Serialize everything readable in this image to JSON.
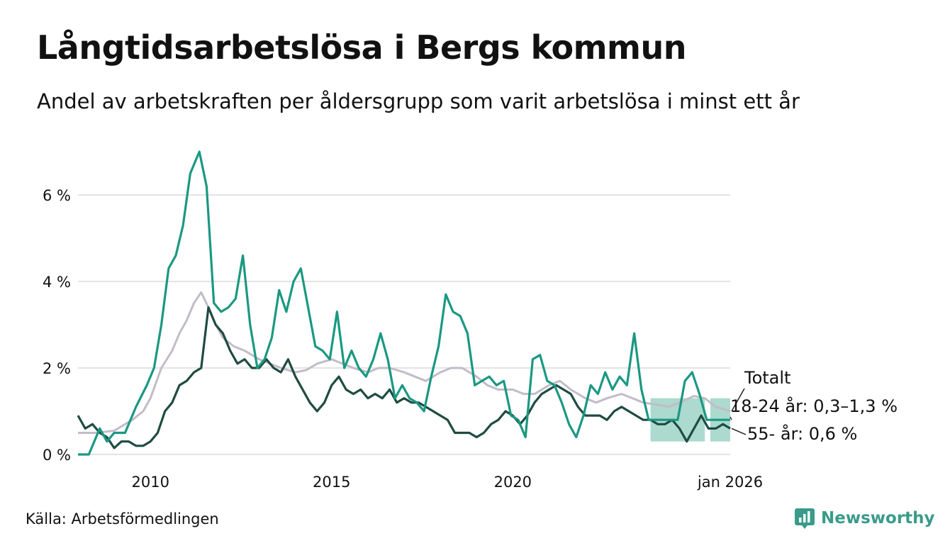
{
  "title": "Långtidsarbetslösa i Bergs kommun",
  "subtitle": "Andel av arbetskraften per åldersgrupp som varit arbetslösa i minst ett år",
  "source": "Källa: Arbetsförmedlingen",
  "brand": "Newsworthy",
  "colors": {
    "teal": "#1a9882",
    "dark": "#1f4b42",
    "gray": "#c2bcc8",
    "band": "#9ed3c6",
    "grid": "#e3e3e3",
    "brand": "#3a9b8a"
  },
  "chart_data": {
    "type": "line",
    "x_unit": "year (decimal)",
    "xlim": [
      2008.0,
      2026.0
    ],
    "ylim": [
      0,
      7.2
    ],
    "y_ticks": [
      {
        "value": 0,
        "label": "0 %"
      },
      {
        "value": 2,
        "label": "2 %"
      },
      {
        "value": 4,
        "label": "4 %"
      },
      {
        "value": 6,
        "label": "6 %"
      }
    ],
    "x_ticks": [
      {
        "value": 2010,
        "label": "2010"
      },
      {
        "value": 2015,
        "label": "2015"
      },
      {
        "value": 2020,
        "label": "2020"
      },
      {
        "value": 2026,
        "label": "jan 2026"
      }
    ],
    "grid": true,
    "series": [
      {
        "name": "Totalt",
        "label": "Totalt",
        "color": "#c2bcc8",
        "points": [
          [
            2008.0,
            0.5
          ],
          [
            2008.5,
            0.5
          ],
          [
            2009.0,
            0.55
          ],
          [
            2009.5,
            0.8
          ],
          [
            2009.8,
            1.0
          ],
          [
            2010.0,
            1.3
          ],
          [
            2010.3,
            2.0
          ],
          [
            2010.6,
            2.4
          ],
          [
            2010.8,
            2.8
          ],
          [
            2011.0,
            3.1
          ],
          [
            2011.2,
            3.5
          ],
          [
            2011.4,
            3.75
          ],
          [
            2011.6,
            3.4
          ],
          [
            2011.8,
            3.0
          ],
          [
            2012.0,
            2.7
          ],
          [
            2012.3,
            2.5
          ],
          [
            2012.6,
            2.4
          ],
          [
            2013.0,
            2.2
          ],
          [
            2013.3,
            2.1
          ],
          [
            2013.6,
            2.0
          ],
          [
            2014.0,
            1.9
          ],
          [
            2014.3,
            1.95
          ],
          [
            2014.6,
            2.1
          ],
          [
            2015.0,
            2.2
          ],
          [
            2015.3,
            2.1
          ],
          [
            2015.6,
            2.0
          ],
          [
            2016.0,
            1.9
          ],
          [
            2016.3,
            2.0
          ],
          [
            2016.6,
            2.0
          ],
          [
            2017.0,
            1.9
          ],
          [
            2017.3,
            1.8
          ],
          [
            2017.6,
            1.7
          ],
          [
            2018.0,
            1.9
          ],
          [
            2018.3,
            2.0
          ],
          [
            2018.6,
            2.0
          ],
          [
            2019.0,
            1.8
          ],
          [
            2019.3,
            1.6
          ],
          [
            2019.6,
            1.5
          ],
          [
            2020.0,
            1.5
          ],
          [
            2020.3,
            1.4
          ],
          [
            2020.6,
            1.4
          ],
          [
            2021.0,
            1.6
          ],
          [
            2021.3,
            1.7
          ],
          [
            2021.6,
            1.5
          ],
          [
            2022.0,
            1.3
          ],
          [
            2022.3,
            1.2
          ],
          [
            2022.6,
            1.3
          ],
          [
            2023.0,
            1.4
          ],
          [
            2023.3,
            1.3
          ],
          [
            2023.6,
            1.2
          ],
          [
            2024.0,
            1.15
          ],
          [
            2024.3,
            1.1
          ],
          [
            2024.6,
            1.2
          ],
          [
            2025.0,
            1.35
          ],
          [
            2025.3,
            1.3
          ],
          [
            2025.6,
            1.1
          ],
          [
            2026.0,
            1.0
          ]
        ]
      },
      {
        "name": "18-24 år",
        "label": "18-24 år: 0,3–1,3 %",
        "color": "#1a9882",
        "range": [
          0.3,
          1.3
        ],
        "points": [
          [
            2008.0,
            0.0
          ],
          [
            2008.3,
            0.0
          ],
          [
            2008.6,
            0.6
          ],
          [
            2008.8,
            0.3
          ],
          [
            2009.0,
            0.5
          ],
          [
            2009.3,
            0.5
          ],
          [
            2009.6,
            1.1
          ],
          [
            2009.9,
            1.6
          ],
          [
            2010.1,
            2.0
          ],
          [
            2010.3,
            3.0
          ],
          [
            2010.5,
            4.3
          ],
          [
            2010.7,
            4.6
          ],
          [
            2010.9,
            5.3
          ],
          [
            2011.1,
            6.5
          ],
          [
            2011.35,
            7.0
          ],
          [
            2011.55,
            6.2
          ],
          [
            2011.75,
            3.5
          ],
          [
            2011.95,
            3.3
          ],
          [
            2012.15,
            3.4
          ],
          [
            2012.35,
            3.6
          ],
          [
            2012.55,
            4.6
          ],
          [
            2012.75,
            3.0
          ],
          [
            2012.95,
            2.0
          ],
          [
            2013.15,
            2.2
          ],
          [
            2013.35,
            2.7
          ],
          [
            2013.55,
            3.8
          ],
          [
            2013.75,
            3.3
          ],
          [
            2013.95,
            4.0
          ],
          [
            2014.15,
            4.3
          ],
          [
            2014.35,
            3.4
          ],
          [
            2014.55,
            2.5
          ],
          [
            2014.75,
            2.4
          ],
          [
            2014.95,
            2.2
          ],
          [
            2015.15,
            3.3
          ],
          [
            2015.35,
            2.0
          ],
          [
            2015.55,
            2.4
          ],
          [
            2015.75,
            2.0
          ],
          [
            2015.95,
            1.8
          ],
          [
            2016.15,
            2.2
          ],
          [
            2016.35,
            2.8
          ],
          [
            2016.55,
            2.2
          ],
          [
            2016.75,
            1.3
          ],
          [
            2016.95,
            1.6
          ],
          [
            2017.15,
            1.3
          ],
          [
            2017.35,
            1.2
          ],
          [
            2017.55,
            1.0
          ],
          [
            2017.75,
            1.8
          ],
          [
            2017.95,
            2.5
          ],
          [
            2018.15,
            3.7
          ],
          [
            2018.35,
            3.3
          ],
          [
            2018.55,
            3.2
          ],
          [
            2018.75,
            2.8
          ],
          [
            2018.95,
            1.6
          ],
          [
            2019.15,
            1.7
          ],
          [
            2019.35,
            1.8
          ],
          [
            2019.55,
            1.6
          ],
          [
            2019.75,
            1.7
          ],
          [
            2019.95,
            0.9
          ],
          [
            2020.15,
            0.8
          ],
          [
            2020.35,
            0.4
          ],
          [
            2020.55,
            2.2
          ],
          [
            2020.75,
            2.3
          ],
          [
            2020.95,
            1.7
          ],
          [
            2021.15,
            1.6
          ],
          [
            2021.35,
            1.2
          ],
          [
            2021.55,
            0.7
          ],
          [
            2021.75,
            0.4
          ],
          [
            2021.95,
            0.9
          ],
          [
            2022.15,
            1.6
          ],
          [
            2022.35,
            1.4
          ],
          [
            2022.55,
            1.9
          ],
          [
            2022.75,
            1.5
          ],
          [
            2022.95,
            1.8
          ],
          [
            2023.15,
            1.6
          ],
          [
            2023.35,
            2.8
          ],
          [
            2023.55,
            1.5
          ],
          [
            2023.75,
            0.8
          ],
          [
            2023.95,
            0.8
          ],
          [
            2024.15,
            0.8
          ],
          [
            2024.35,
            0.8
          ],
          [
            2024.55,
            0.8
          ],
          [
            2024.75,
            1.7
          ],
          [
            2024.95,
            1.9
          ],
          [
            2025.15,
            1.4
          ],
          [
            2025.35,
            0.8
          ],
          [
            2025.7,
            0.8
          ],
          [
            2026.0,
            0.8
          ]
        ]
      },
      {
        "name": "55- år",
        "label": "55- år: 0,6 %",
        "color": "#1f4b42",
        "points": [
          [
            2008.0,
            0.9
          ],
          [
            2008.2,
            0.6
          ],
          [
            2008.4,
            0.7
          ],
          [
            2008.6,
            0.5
          ],
          [
            2008.8,
            0.4
          ],
          [
            2009.0,
            0.15
          ],
          [
            2009.2,
            0.3
          ],
          [
            2009.4,
            0.3
          ],
          [
            2009.6,
            0.2
          ],
          [
            2009.8,
            0.2
          ],
          [
            2010.0,
            0.3
          ],
          [
            2010.2,
            0.5
          ],
          [
            2010.4,
            1.0
          ],
          [
            2010.6,
            1.2
          ],
          [
            2010.8,
            1.6
          ],
          [
            2011.0,
            1.7
          ],
          [
            2011.2,
            1.9
          ],
          [
            2011.4,
            2.0
          ],
          [
            2011.6,
            3.4
          ],
          [
            2011.8,
            3.0
          ],
          [
            2012.0,
            2.8
          ],
          [
            2012.2,
            2.4
          ],
          [
            2012.4,
            2.1
          ],
          [
            2012.6,
            2.2
          ],
          [
            2012.8,
            2.0
          ],
          [
            2013.0,
            2.0
          ],
          [
            2013.2,
            2.2
          ],
          [
            2013.4,
            2.0
          ],
          [
            2013.6,
            1.9
          ],
          [
            2013.8,
            2.2
          ],
          [
            2014.0,
            1.8
          ],
          [
            2014.2,
            1.5
          ],
          [
            2014.4,
            1.2
          ],
          [
            2014.6,
            1.0
          ],
          [
            2014.8,
            1.2
          ],
          [
            2015.0,
            1.6
          ],
          [
            2015.2,
            1.8
          ],
          [
            2015.4,
            1.5
          ],
          [
            2015.6,
            1.4
          ],
          [
            2015.8,
            1.5
          ],
          [
            2016.0,
            1.3
          ],
          [
            2016.2,
            1.4
          ],
          [
            2016.4,
            1.3
          ],
          [
            2016.6,
            1.5
          ],
          [
            2016.8,
            1.2
          ],
          [
            2017.0,
            1.3
          ],
          [
            2017.2,
            1.2
          ],
          [
            2017.4,
            1.2
          ],
          [
            2017.6,
            1.1
          ],
          [
            2017.8,
            1.0
          ],
          [
            2018.0,
            0.9
          ],
          [
            2018.2,
            0.8
          ],
          [
            2018.4,
            0.5
          ],
          [
            2018.6,
            0.5
          ],
          [
            2018.8,
            0.5
          ],
          [
            2019.0,
            0.4
          ],
          [
            2019.2,
            0.5
          ],
          [
            2019.4,
            0.7
          ],
          [
            2019.6,
            0.8
          ],
          [
            2019.8,
            1.0
          ],
          [
            2020.0,
            0.9
          ],
          [
            2020.2,
            0.7
          ],
          [
            2020.4,
            0.9
          ],
          [
            2020.6,
            1.2
          ],
          [
            2020.8,
            1.4
          ],
          [
            2021.0,
            1.5
          ],
          [
            2021.2,
            1.6
          ],
          [
            2021.4,
            1.5
          ],
          [
            2021.6,
            1.4
          ],
          [
            2021.8,
            1.1
          ],
          [
            2022.0,
            0.9
          ],
          [
            2022.2,
            0.9
          ],
          [
            2022.4,
            0.9
          ],
          [
            2022.6,
            0.8
          ],
          [
            2022.8,
            1.0
          ],
          [
            2023.0,
            1.1
          ],
          [
            2023.2,
            1.0
          ],
          [
            2023.4,
            0.9
          ],
          [
            2023.6,
            0.8
          ],
          [
            2023.8,
            0.8
          ],
          [
            2024.0,
            0.7
          ],
          [
            2024.2,
            0.7
          ],
          [
            2024.4,
            0.8
          ],
          [
            2024.6,
            0.6
          ],
          [
            2024.8,
            0.3
          ],
          [
            2025.0,
            0.6
          ],
          [
            2025.2,
            0.9
          ],
          [
            2025.4,
            0.6
          ],
          [
            2025.6,
            0.6
          ],
          [
            2025.8,
            0.7
          ],
          [
            2026.0,
            0.6
          ]
        ]
      }
    ],
    "uncertainty_band": {
      "series": "18-24 år",
      "color": "#9ed3c6",
      "segments": [
        {
          "x": [
            2023.8,
            2025.3
          ],
          "y": [
            0.3,
            1.3
          ]
        },
        {
          "x": [
            2025.45,
            2026.0
          ],
          "y": [
            0.3,
            1.3
          ]
        }
      ]
    }
  }
}
